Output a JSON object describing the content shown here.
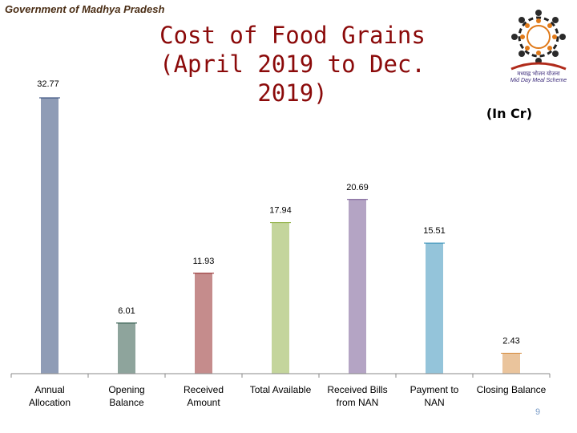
{
  "header": {
    "org": "Government of Madhya Pradesh",
    "title_line1": "Cost of Food Grains",
    "title_line2": "(April 2019 to Dec. 2019)",
    "unit": "(In Cr)",
    "logo_hindi": "मध्याह्न भोजन योजना",
    "logo_english": "Mid Day Meal Scheme",
    "page_number": "9"
  },
  "chart_data": {
    "type": "bar",
    "title": "Cost of Food Grains (April 2019 to Dec. 2019)",
    "unit": "(In Cr)",
    "categories": [
      [
        "Annual",
        "Allocation"
      ],
      [
        "Opening",
        "Balance"
      ],
      [
        "Received",
        "Amount"
      ],
      [
        "Total Available"
      ],
      [
        "Received Bills",
        "from NAN"
      ],
      [
        "Payment to",
        "NAN"
      ],
      [
        "Closing Balance"
      ]
    ],
    "values": [
      32.77,
      6.01,
      11.93,
      17.94,
      20.69,
      15.51,
      2.43
    ],
    "value_labels": [
      "32.77",
      "6.01",
      "11.93",
      "17.94",
      "20.69",
      "15.51",
      "2.43"
    ],
    "colors": [
      "#1f3a6e",
      "#1d4a3a",
      "#8b1a1a",
      "#8aab3a",
      "#6a4a8a",
      "#2a8ab4",
      "#d4893a"
    ],
    "ylim": [
      0,
      32.77
    ],
    "xlabel": "",
    "ylabel": "",
    "grid": false
  }
}
